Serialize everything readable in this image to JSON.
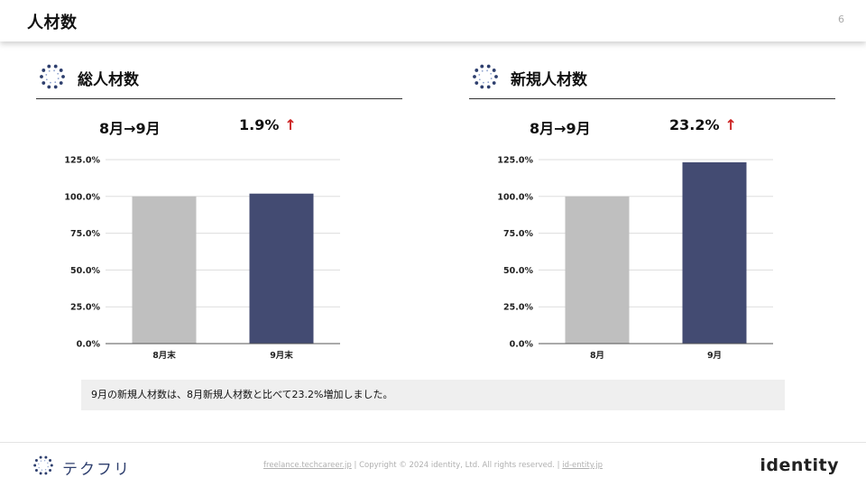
{
  "header": {
    "title": "人材数",
    "page_number": "6"
  },
  "panels": [
    {
      "title": "総人材数",
      "icon": "dot-circle-logo-icon",
      "summary_period": "8月→9月",
      "summary_value": "1.9%",
      "summary_arrow": "↑"
    },
    {
      "title": "新規人材数",
      "icon": "dot-circle-logo-icon",
      "summary_period": "8月→9月",
      "summary_value": "23.2%",
      "summary_arrow": "↑"
    }
  ],
  "chart_data": [
    {
      "type": "bar",
      "categories": [
        "8月末",
        "9月末"
      ],
      "values": [
        100.0,
        101.9
      ],
      "ylim": [
        0,
        125
      ],
      "yticks": [
        "0.0%",
        "25.0%",
        "50.0%",
        "75.0%",
        "100.0%",
        "125.0%"
      ],
      "ytick_values": [
        0,
        25,
        50,
        75,
        100,
        125
      ],
      "grid": true,
      "colors": [
        "#bfbfbf",
        "#434b72"
      ]
    },
    {
      "type": "bar",
      "categories": [
        "8月",
        "9月"
      ],
      "values": [
        100.0,
        123.2
      ],
      "ylim": [
        0,
        125
      ],
      "yticks": [
        "0.0%",
        "25.0%",
        "50.0%",
        "75.0%",
        "100.0%",
        "125.0%"
      ],
      "ytick_values": [
        0,
        25,
        50,
        75,
        100,
        125
      ],
      "grid": true,
      "colors": [
        "#bfbfbf",
        "#434b72"
      ]
    }
  ],
  "note": "9月の新規人材数は、8月新規人材数と比べて23.2%増加しました。",
  "footer": {
    "logo_text": "テクフリ",
    "link1": "freelance.techcareer.jp",
    "separator": "|",
    "copyright": "Copyright © 2024 identity, Ltd. All rights reserved.",
    "link2": "id-entity.jp",
    "brand": "identity"
  },
  "theme": {
    "accent": "#434b72",
    "gray_bar": "#bfbfbf",
    "arrow_red": "#cc2222",
    "logo_blue": "#2e3f6e"
  }
}
